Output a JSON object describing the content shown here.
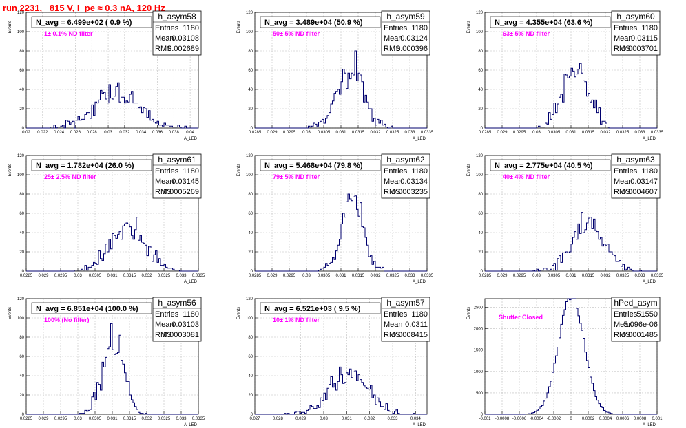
{
  "header": {
    "title": "run 2231,   815 V, I_pe ≈ 0.3 nA, 120 Hz"
  },
  "colors": {
    "histogram": "#00006e",
    "grid": "#bdbdbd",
    "filter_text": "#ff00ff",
    "title_text": "#ff0000"
  },
  "chart_data": [
    {
      "type": "bar",
      "name": "h_asym58",
      "n_avg": "N_avg = 6.499e+02 ( 0.9 %)",
      "filter": "1± 0.1% ND filter",
      "stats": [
        [
          "Entries",
          "1180"
        ],
        [
          "Mean",
          "0.03108"
        ],
        [
          "RMS",
          "0.002689"
        ]
      ],
      "xlabel": "A_LED",
      "ylabel": "Events",
      "xlim": [
        0.02,
        0.041
      ],
      "ylim": [
        0,
        120
      ],
      "xticks": [
        0.02,
        0.022,
        0.024,
        0.026,
        0.028,
        0.03,
        0.032,
        0.034,
        0.036,
        0.038,
        0.04
      ],
      "xtick_labels": [
        "0.02",
        "0.022",
        "0.024",
        "0.026",
        "0.028",
        "0.03",
        "0.032",
        "0.034",
        "0.036",
        "0.038",
        "0.04"
      ],
      "yticks": [
        0,
        20,
        40,
        60,
        80,
        100,
        120
      ],
      "ytick_labels": [
        "0",
        "20",
        "40",
        "60",
        "80",
        "100",
        "120"
      ],
      "hist": {
        "kind": "gauss",
        "mean": 0.03108,
        "rms": 0.002689,
        "entries": 1180,
        "bins": 100,
        "seed": 11
      }
    },
    {
      "type": "bar",
      "name": "h_asym59",
      "n_avg": "N_avg = 3.489e+04 (50.9 %)",
      "filter": "50± 5% ND filter",
      "stats": [
        [
          "Entries",
          "1180"
        ],
        [
          "Mean",
          "0.03124"
        ],
        [
          "RMS",
          "0.000396"
        ]
      ],
      "xlabel": "A_LED",
      "ylabel": "Events",
      "xlim": [
        0.0285,
        0.0335
      ],
      "ylim": [
        0,
        120
      ],
      "xticks": [
        0.0285,
        0.029,
        0.0295,
        0.03,
        0.0305,
        0.031,
        0.0315,
        0.032,
        0.0325,
        0.033,
        0.0335
      ],
      "xtick_labels": [
        "0.0285",
        "0.029",
        "0.0295",
        "0.03",
        "0.0305",
        "0.031",
        "0.0315",
        "0.032",
        "0.0325",
        "0.033",
        "0.0335"
      ],
      "yticks": [
        0,
        20,
        40,
        60,
        80,
        100,
        120
      ],
      "ytick_labels": [
        "0",
        "20",
        "40",
        "60",
        "80",
        "100",
        "120"
      ],
      "hist": {
        "kind": "gauss",
        "mean": 0.03124,
        "rms": 0.000396,
        "entries": 1180,
        "bins": 100,
        "seed": 23
      }
    },
    {
      "type": "bar",
      "name": "h_asym60",
      "n_avg": "N_avg = 4.355e+04 (63.6 %)",
      "filter": "63± 5% ND filter",
      "stats": [
        [
          "Entries",
          "1180"
        ],
        [
          "Mean",
          "0.03115"
        ],
        [
          "RMS",
          "0.0003701"
        ]
      ],
      "xlabel": "A_LED",
      "ylabel": "Events",
      "xlim": [
        0.0285,
        0.0335
      ],
      "ylim": [
        0,
        120
      ],
      "xticks": [
        0.0285,
        0.029,
        0.0295,
        0.03,
        0.0305,
        0.031,
        0.0315,
        0.032,
        0.0325,
        0.033,
        0.0335
      ],
      "xtick_labels": [
        "0.0285",
        "0.029",
        "0.0295",
        "0.03",
        "0.0305",
        "0.031",
        "0.0315",
        "0.032",
        "0.0325",
        "0.033",
        "0.0335"
      ],
      "yticks": [
        0,
        20,
        40,
        60,
        80,
        100,
        120
      ],
      "ytick_labels": [
        "0",
        "20",
        "40",
        "60",
        "80",
        "100",
        "120"
      ],
      "hist": {
        "kind": "gauss",
        "mean": 0.03115,
        "rms": 0.0003701,
        "entries": 1180,
        "bins": 100,
        "seed": 37
      }
    },
    {
      "type": "bar",
      "name": "h_asym61",
      "n_avg": "N_avg = 1.782e+04 (26.0 %)",
      "filter": "25± 2.5% ND filter",
      "stats": [
        [
          "Entries",
          "1180"
        ],
        [
          "Mean",
          "0.03145"
        ],
        [
          "RMS",
          "0.0005269"
        ]
      ],
      "xlabel": "A_LED",
      "ylabel": "Events",
      "xlim": [
        0.0285,
        0.0335
      ],
      "ylim": [
        0,
        120
      ],
      "xticks": [
        0.0285,
        0.029,
        0.0295,
        0.03,
        0.0305,
        0.031,
        0.0315,
        0.032,
        0.0325,
        0.033,
        0.0335
      ],
      "xtick_labels": [
        "0.0285",
        "0.029",
        "0.0295",
        "0.03",
        "0.0305",
        "0.031",
        "0.0315",
        "0.032",
        "0.0325",
        "0.033",
        "0.0335"
      ],
      "yticks": [
        0,
        20,
        40,
        60,
        80,
        100,
        120
      ],
      "ytick_labels": [
        "0",
        "20",
        "40",
        "60",
        "80",
        "100",
        "120"
      ],
      "hist": {
        "kind": "gauss",
        "mean": 0.03145,
        "rms": 0.0005269,
        "entries": 1180,
        "bins": 100,
        "seed": 41
      }
    },
    {
      "type": "bar",
      "name": "h_asym62",
      "n_avg": "N_avg = 5.468e+04 (79.8 %)",
      "filter": "79± 5% ND filter",
      "stats": [
        [
          "Entries",
          "1180"
        ],
        [
          "Mean",
          "0.03134"
        ],
        [
          "RMS",
          "0.0003235"
        ]
      ],
      "xlabel": "A_LED",
      "ylabel": "Events",
      "xlim": [
        0.0285,
        0.0335
      ],
      "ylim": [
        0,
        120
      ],
      "xticks": [
        0.0285,
        0.029,
        0.0295,
        0.03,
        0.0305,
        0.031,
        0.0315,
        0.032,
        0.0325,
        0.033,
        0.0335
      ],
      "xtick_labels": [
        "0.0285",
        "0.029",
        "0.0295",
        "0.03",
        "0.0305",
        "0.031",
        "0.0315",
        "0.032",
        "0.0325",
        "0.033",
        "0.0335"
      ],
      "yticks": [
        0,
        20,
        40,
        60,
        80,
        100,
        120
      ],
      "ytick_labels": [
        "0",
        "20",
        "40",
        "60",
        "80",
        "100",
        "120"
      ],
      "hist": {
        "kind": "gauss",
        "mean": 0.03134,
        "rms": 0.0003235,
        "entries": 1180,
        "bins": 100,
        "seed": 53
      }
    },
    {
      "type": "bar",
      "name": "h_asym63",
      "n_avg": "N_avg = 2.775e+04 (40.5 %)",
      "filter": "40± 4% ND filter",
      "stats": [
        [
          "Entries",
          "1180"
        ],
        [
          "Mean",
          "0.03147"
        ],
        [
          "RMS",
          "0.0004607"
        ]
      ],
      "xlabel": "A_LED",
      "ylabel": "Events",
      "xlim": [
        0.0285,
        0.0335
      ],
      "ylim": [
        0,
        120
      ],
      "xticks": [
        0.0285,
        0.029,
        0.0295,
        0.03,
        0.0305,
        0.031,
        0.0315,
        0.032,
        0.0325,
        0.033,
        0.0335
      ],
      "xtick_labels": [
        "0.0285",
        "0.029",
        "0.0295",
        "0.03",
        "0.0305",
        "0.031",
        "0.0315",
        "0.032",
        "0.0325",
        "0.033",
        "0.0335"
      ],
      "yticks": [
        0,
        20,
        40,
        60,
        80,
        100,
        120
      ],
      "ytick_labels": [
        "0",
        "20",
        "40",
        "60",
        "80",
        "100",
        "120"
      ],
      "hist": {
        "kind": "gauss",
        "mean": 0.03147,
        "rms": 0.0004607,
        "entries": 1180,
        "bins": 100,
        "seed": 67
      }
    },
    {
      "type": "bar",
      "name": "h_asym56",
      "n_avg": "N_avg = 6.851e+04 (100.0 %)",
      "filter": "100% (No filter)",
      "stats": [
        [
          "Entries",
          "1180"
        ],
        [
          "Mean",
          "0.03103"
        ],
        [
          "RMS",
          "0.0003081"
        ]
      ],
      "xlabel": "A_LED",
      "ylabel": "Events",
      "xlim": [
        0.0285,
        0.0335
      ],
      "ylim": [
        0,
        120
      ],
      "xticks": [
        0.0285,
        0.029,
        0.0295,
        0.03,
        0.0305,
        0.031,
        0.0315,
        0.032,
        0.0325,
        0.033,
        0.0335
      ],
      "xtick_labels": [
        "0.0285",
        "0.029",
        "0.0295",
        "0.03",
        "0.0305",
        "0.031",
        "0.0315",
        "0.032",
        "0.0325",
        "0.033",
        "0.0335"
      ],
      "yticks": [
        0,
        20,
        40,
        60,
        80,
        100,
        120
      ],
      "ytick_labels": [
        "0",
        "20",
        "40",
        "60",
        "80",
        "100",
        "120"
      ],
      "hist": {
        "kind": "gauss",
        "mean": 0.03103,
        "rms": 0.0003081,
        "entries": 1180,
        "bins": 100,
        "seed": 79
      }
    },
    {
      "type": "bar",
      "name": "h_asym57",
      "n_avg": "N_avg = 6.521e+03 ( 9.5 %)",
      "filter": "10± 1% ND filter",
      "stats": [
        [
          "Entries",
          "1180"
        ],
        [
          "Mean",
          "0.0311"
        ],
        [
          "RMS",
          "0.0008415"
        ]
      ],
      "xlabel": "A_LED",
      "ylabel": "Events",
      "xlim": [
        0.027,
        0.0345
      ],
      "ylim": [
        0,
        120
      ],
      "xticks": [
        0.027,
        0.028,
        0.029,
        0.03,
        0.031,
        0.032,
        0.033,
        0.034
      ],
      "xtick_labels": [
        "0.027",
        "0.028",
        "0.029",
        "0.03",
        "0.031",
        "0.032",
        "0.033",
        "0.034"
      ],
      "yticks": [
        0,
        20,
        40,
        60,
        80,
        100,
        120
      ],
      "ytick_labels": [
        "0",
        "20",
        "40",
        "60",
        "80",
        "100",
        "120"
      ],
      "hist": {
        "kind": "gauss",
        "mean": 0.0311,
        "rms": 0.0008415,
        "entries": 1180,
        "bins": 100,
        "seed": 83
      }
    },
    {
      "type": "bar",
      "name": "hPed_asym",
      "n_avg": "",
      "filter": "Shutter Closed",
      "stats": [
        [
          "Entries",
          "51550"
        ],
        [
          "Mean",
          "5.096e-06"
        ],
        [
          "RMS",
          "0.0001485"
        ]
      ],
      "xlabel": "A_LED",
      "ylabel": "Events",
      "xlim": [
        -0.001,
        0.001
      ],
      "ylim": [
        0,
        2700
      ],
      "xticks": [
        -0.001,
        -0.0008,
        -0.0006,
        -0.0004,
        -0.0002,
        0,
        0.0002,
        0.0004,
        0.0006,
        0.0008,
        0.001
      ],
      "xtick_labels": [
        "-0.001",
        "-0.0008",
        "-0.0006",
        "-0.0004",
        "-0.0002",
        "0",
        "0.0002",
        "0.0004",
        "0.0006",
        "0.0008",
        "0.001"
      ],
      "yticks": [
        0,
        500,
        1000,
        1500,
        2000,
        2500
      ],
      "ytick_labels": [
        "0",
        "500",
        "1000",
        "1500",
        "2000",
        "2500"
      ],
      "hist": {
        "kind": "gauss",
        "mean": 5.096e-06,
        "rms": 0.0001485,
        "entries": 51550,
        "bins": 100,
        "seed": 97
      }
    }
  ]
}
